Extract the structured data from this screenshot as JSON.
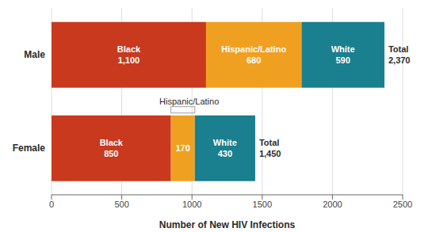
{
  "chart_data": {
    "type": "bar",
    "orientation": "horizontal",
    "stacked": true,
    "data_labels": true,
    "grid": true,
    "categories": [
      "Male",
      "Female"
    ],
    "series": [
      {
        "name": "Black",
        "color": "#C8391E",
        "values": [
          1100,
          850
        ],
        "value_labels": [
          "Black\n1,100",
          "Black\n850"
        ]
      },
      {
        "name": "Hispanic/Latino",
        "color": "#F0A020",
        "values": [
          680,
          170
        ],
        "value_labels": [
          "Hispanic/Latino\n680",
          "170"
        ]
      },
      {
        "name": "White",
        "color": "#1A7F8E",
        "values": [
          590,
          430
        ],
        "value_labels": [
          "White\n590",
          "White\n430"
        ]
      }
    ],
    "totals": [
      {
        "value": 2370,
        "label": "Total\n2,370"
      },
      {
        "value": 1450,
        "label": "Total\n1,450"
      }
    ],
    "annotations": [
      {
        "text": "Hispanic/Latino",
        "category": "Female",
        "series": "Hispanic/Latino"
      }
    ],
    "xlabel": "Number of New HIV Infections",
    "xlim": [
      0,
      2500
    ],
    "xticks": [
      0,
      500,
      1000,
      1500,
      2000,
      2500
    ]
  }
}
